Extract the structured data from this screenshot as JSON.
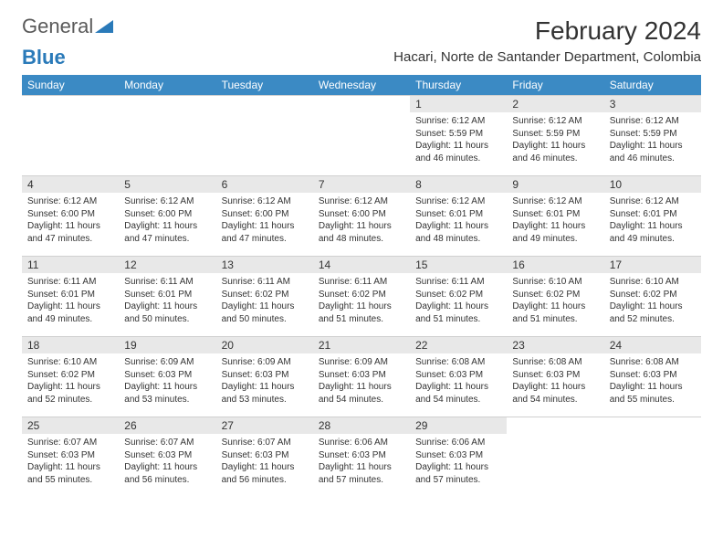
{
  "logo": {
    "general": "General",
    "blue": "Blue"
  },
  "title": "February 2024",
  "location": "Hacari, Norte de Santander Department, Colombia",
  "colors": {
    "header_bg": "#3b8ac4",
    "header_text": "#ffffff",
    "daynum_bg": "#e8e8e8",
    "text": "#333333",
    "logo_gray": "#5a5a5a",
    "logo_blue": "#2a7ab9",
    "background": "#ffffff"
  },
  "weekdays": [
    "Sunday",
    "Monday",
    "Tuesday",
    "Wednesday",
    "Thursday",
    "Friday",
    "Saturday"
  ],
  "weeks": [
    [
      null,
      null,
      null,
      null,
      {
        "n": "1",
        "sr": "6:12 AM",
        "ss": "5:59 PM",
        "dl": "11 hours and 46 minutes."
      },
      {
        "n": "2",
        "sr": "6:12 AM",
        "ss": "5:59 PM",
        "dl": "11 hours and 46 minutes."
      },
      {
        "n": "3",
        "sr": "6:12 AM",
        "ss": "5:59 PM",
        "dl": "11 hours and 46 minutes."
      }
    ],
    [
      {
        "n": "4",
        "sr": "6:12 AM",
        "ss": "6:00 PM",
        "dl": "11 hours and 47 minutes."
      },
      {
        "n": "5",
        "sr": "6:12 AM",
        "ss": "6:00 PM",
        "dl": "11 hours and 47 minutes."
      },
      {
        "n": "6",
        "sr": "6:12 AM",
        "ss": "6:00 PM",
        "dl": "11 hours and 47 minutes."
      },
      {
        "n": "7",
        "sr": "6:12 AM",
        "ss": "6:00 PM",
        "dl": "11 hours and 48 minutes."
      },
      {
        "n": "8",
        "sr": "6:12 AM",
        "ss": "6:01 PM",
        "dl": "11 hours and 48 minutes."
      },
      {
        "n": "9",
        "sr": "6:12 AM",
        "ss": "6:01 PM",
        "dl": "11 hours and 49 minutes."
      },
      {
        "n": "10",
        "sr": "6:12 AM",
        "ss": "6:01 PM",
        "dl": "11 hours and 49 minutes."
      }
    ],
    [
      {
        "n": "11",
        "sr": "6:11 AM",
        "ss": "6:01 PM",
        "dl": "11 hours and 49 minutes."
      },
      {
        "n": "12",
        "sr": "6:11 AM",
        "ss": "6:01 PM",
        "dl": "11 hours and 50 minutes."
      },
      {
        "n": "13",
        "sr": "6:11 AM",
        "ss": "6:02 PM",
        "dl": "11 hours and 50 minutes."
      },
      {
        "n": "14",
        "sr": "6:11 AM",
        "ss": "6:02 PM",
        "dl": "11 hours and 51 minutes."
      },
      {
        "n": "15",
        "sr": "6:11 AM",
        "ss": "6:02 PM",
        "dl": "11 hours and 51 minutes."
      },
      {
        "n": "16",
        "sr": "6:10 AM",
        "ss": "6:02 PM",
        "dl": "11 hours and 51 minutes."
      },
      {
        "n": "17",
        "sr": "6:10 AM",
        "ss": "6:02 PM",
        "dl": "11 hours and 52 minutes."
      }
    ],
    [
      {
        "n": "18",
        "sr": "6:10 AM",
        "ss": "6:02 PM",
        "dl": "11 hours and 52 minutes."
      },
      {
        "n": "19",
        "sr": "6:09 AM",
        "ss": "6:03 PM",
        "dl": "11 hours and 53 minutes."
      },
      {
        "n": "20",
        "sr": "6:09 AM",
        "ss": "6:03 PM",
        "dl": "11 hours and 53 minutes."
      },
      {
        "n": "21",
        "sr": "6:09 AM",
        "ss": "6:03 PM",
        "dl": "11 hours and 54 minutes."
      },
      {
        "n": "22",
        "sr": "6:08 AM",
        "ss": "6:03 PM",
        "dl": "11 hours and 54 minutes."
      },
      {
        "n": "23",
        "sr": "6:08 AM",
        "ss": "6:03 PM",
        "dl": "11 hours and 54 minutes."
      },
      {
        "n": "24",
        "sr": "6:08 AM",
        "ss": "6:03 PM",
        "dl": "11 hours and 55 minutes."
      }
    ],
    [
      {
        "n": "25",
        "sr": "6:07 AM",
        "ss": "6:03 PM",
        "dl": "11 hours and 55 minutes."
      },
      {
        "n": "26",
        "sr": "6:07 AM",
        "ss": "6:03 PM",
        "dl": "11 hours and 56 minutes."
      },
      {
        "n": "27",
        "sr": "6:07 AM",
        "ss": "6:03 PM",
        "dl": "11 hours and 56 minutes."
      },
      {
        "n": "28",
        "sr": "6:06 AM",
        "ss": "6:03 PM",
        "dl": "11 hours and 57 minutes."
      },
      {
        "n": "29",
        "sr": "6:06 AM",
        "ss": "6:03 PM",
        "dl": "11 hours and 57 minutes."
      },
      null,
      null
    ]
  ],
  "labels": {
    "sunrise": "Sunrise:",
    "sunset": "Sunset:",
    "daylight": "Daylight:"
  }
}
